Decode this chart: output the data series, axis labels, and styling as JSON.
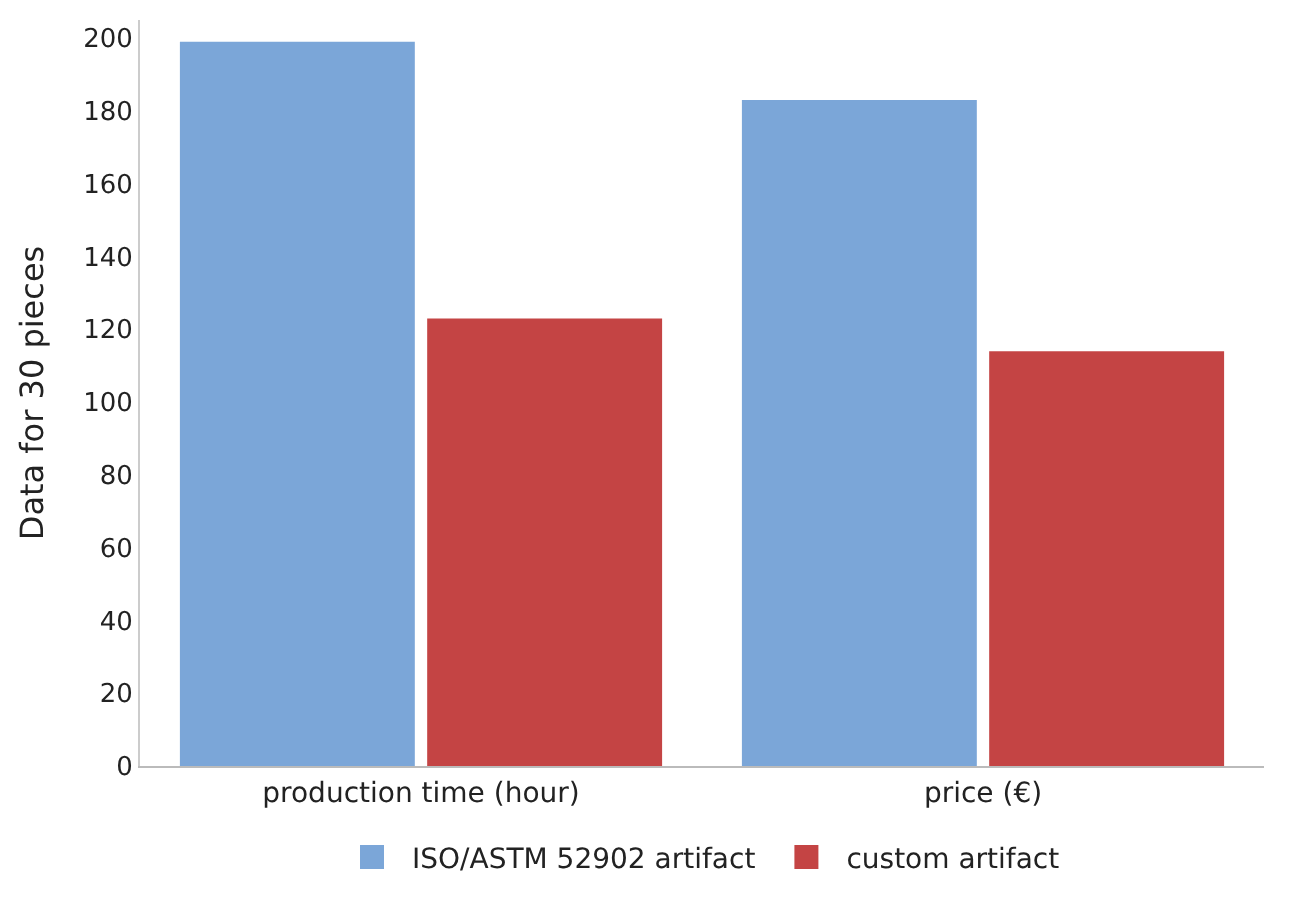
{
  "chart_data": {
    "type": "bar",
    "ylabel": "Data for 30 pieces",
    "categories": [
      "production time (hour)",
      "price (€)"
    ],
    "series": [
      {
        "name": "ISO/ASTM 52902 artifact",
        "color": "#7ba6d8",
        "values": [
          199,
          183
        ]
      },
      {
        "name": "custom artifact",
        "color": "#c44444",
        "values": [
          123,
          114
        ]
      }
    ],
    "ylim": [
      0,
      205
    ],
    "yticks": [
      0,
      20,
      40,
      60,
      80,
      100,
      120,
      140,
      160,
      180,
      200
    ],
    "legend": "bottom"
  }
}
